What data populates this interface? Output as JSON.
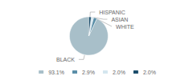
{
  "chart_data": {
    "type": "pie",
    "categories": [
      "BLACK",
      "WHITE",
      "ASIAN",
      "HISPANIC"
    ],
    "values": [
      93.1,
      2.9,
      2.0,
      2.0
    ],
    "value_labels": [
      "93.1%",
      "2.9%",
      "2.0%",
      "2.0%"
    ],
    "colors": [
      "#a8bfc9",
      "#5b8fa8",
      "#d4e6ef",
      "#1c4d6b"
    ],
    "legend": "bottom"
  }
}
